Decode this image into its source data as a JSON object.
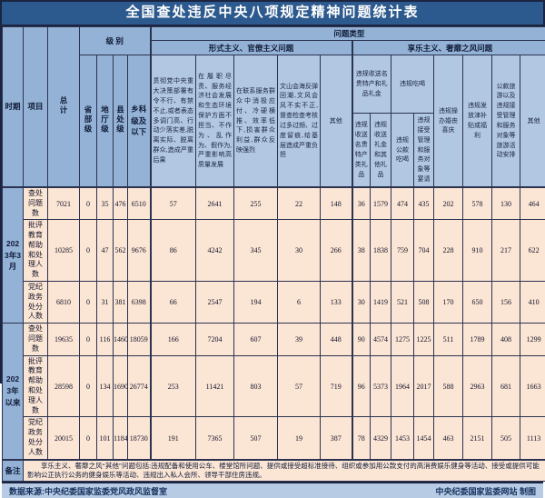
{
  "title": "全国查处违反中央八项规定精神问题统计表",
  "header": {
    "period": "时期",
    "item": "项目",
    "total": "总计",
    "level": "级 别",
    "problem_type": "问题类型",
    "formalism_group": "形式主义、官僚主义问题",
    "hedonism_group": "享乐主义、奢靡之风问题",
    "level_cols": [
      "省部级",
      "地厅级",
      "县处级",
      "乡科级及以下"
    ],
    "formalism_cols": [
      "贯彻党中央重大决策部署有令不行、有禁不止,或者表态多调门高、行动少落实差,脱离实际、脱离群众,造成严重后果",
      "在履职尽责、服务经济社会发展和生态环境保护方面不担当、不作为、乱作为、假作为,严重影响高质量发展",
      "在联系服务群众中消极应付、冷硬横推、效率低下,损害群众利益,群众反映强烈",
      "文山会海反弹回潮,文风会风不实不正,督查检查考核过多过频、过度留痕,给基层造成严重负担",
      "其他"
    ],
    "hedonism": {
      "gifts_group": "违规收送名贵特产和礼品礼金",
      "gifts_cols": [
        "违规收送名贵特产类礼品",
        "违规收送礼金和其他礼品"
      ],
      "dining_group": "违规吃喝",
      "dining_cols": [
        "违规公款吃喝",
        "违规接受管理和服务对象等宴请"
      ],
      "single_cols": [
        "违规操办婚丧喜庆",
        "违规发放津补贴或福利",
        "公款旅游以及违规接受管理和服务对象等旅游活动安排",
        "其他"
      ]
    }
  },
  "rows": [
    {
      "period": "2023年3月",
      "label": "查处问题数",
      "values": [
        7021,
        0,
        35,
        476,
        6510,
        57,
        2641,
        255,
        22,
        148,
        36,
        1579,
        474,
        435,
        202,
        578,
        130,
        464
      ]
    },
    {
      "label": "批评教育帮助和处理人数",
      "values": [
        10285,
        0,
        47,
        562,
        9676,
        86,
        4242,
        345,
        30,
        266,
        38,
        1838,
        759,
        704,
        228,
        910,
        217,
        622
      ]
    },
    {
      "label": "党纪政务处分人数",
      "values": [
        6810,
        0,
        31,
        381,
        6398,
        66,
        2547,
        194,
        6,
        133,
        30,
        1419,
        521,
        508,
        170,
        650,
        156,
        410
      ]
    },
    {
      "period": "2023年以来",
      "label": "查处问题数",
      "values": [
        19635,
        0,
        116,
        1460,
        18059,
        166,
        7204,
        607,
        39,
        448,
        90,
        4574,
        1275,
        1225,
        511,
        1789,
        408,
        1299
      ]
    },
    {
      "label": "批评教育帮助和处理人数",
      "values": [
        28598,
        0,
        134,
        1690,
        26774,
        253,
        11421,
        803,
        57,
        719,
        96,
        5373,
        1964,
        2017,
        588,
        2963,
        681,
        1663
      ]
    },
    {
      "label": "党纪政务处分人数",
      "values": [
        20015,
        0,
        101,
        1184,
        18730,
        191,
        7365,
        507,
        19,
        387,
        78,
        4329,
        1453,
        1454,
        463,
        2151,
        505,
        1113
      ]
    }
  ],
  "remark": {
    "label": "备注",
    "text": "享乐主义、奢靡之风“其他”问题包括:违规配备和使用公车、楼堂馆所问题、提供或接受超标准接待、组织或参加用公款支付的高消费娱乐健身等活动、接受或提供可能影响公正执行公务的健身娱乐等活动、违规出入私人会所、领导干部住房违规。"
  },
  "footer": {
    "source": "数据来源:中央纪委国家监委党风政风监督室",
    "credit": "中央纪委国家监委网站 制图"
  }
}
